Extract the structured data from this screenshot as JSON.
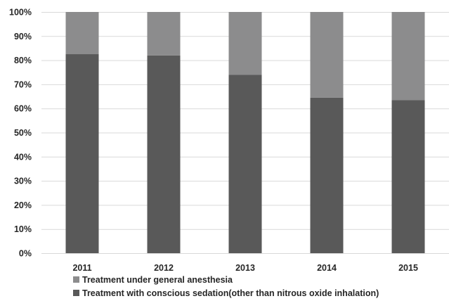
{
  "chart_data": {
    "type": "bar",
    "stacked": true,
    "categories": [
      "2011",
      "2012",
      "2013",
      "2014",
      "2015"
    ],
    "y_unit": "percent",
    "ylim": [
      0,
      100
    ],
    "y_ticks": [
      0,
      10,
      20,
      30,
      40,
      50,
      60,
      70,
      80,
      90,
      100
    ],
    "y_tick_labels": [
      "0%",
      "10%",
      "20%",
      "30%",
      "40%",
      "50%",
      "60%",
      "70%",
      "80%",
      "90%",
      "100%"
    ],
    "grid": "horizontal",
    "legend_position": "bottom",
    "title": "",
    "xlabel": "",
    "ylabel": "",
    "series": [
      {
        "name": "Treatment with conscious sedation(other than nitrous oxide inhalation)",
        "color": "#595959",
        "values": [
          82.5,
          82.0,
          74.0,
          64.5,
          63.5
        ]
      },
      {
        "name": "Treatment under general anesthesia",
        "color": "#8c8c8d",
        "values": [
          17.5,
          18.0,
          26.0,
          35.5,
          36.5
        ]
      }
    ],
    "legend_order": [
      1,
      0
    ]
  }
}
